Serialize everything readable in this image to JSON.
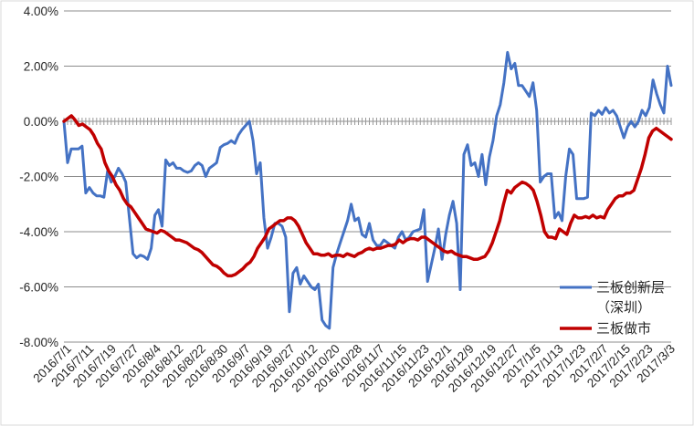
{
  "chart_data": {
    "type": "line",
    "title": "",
    "xlabel": "",
    "ylabel": "",
    "ylim": [
      -8,
      4
    ],
    "y_ticks": [
      "4.00%",
      "2.00%",
      "0.00%",
      "-2.00%",
      "-4.00%",
      "-6.00%",
      "-8.00%"
    ],
    "y_tick_values": [
      4,
      2,
      0,
      -2,
      -4,
      -6,
      -8
    ],
    "x_tick_labels": [
      "2016/7/1",
      "2016/7/11",
      "2016/7/19",
      "2016/7/27",
      "2016/8/4",
      "2016/8/12",
      "2016/8/22",
      "2016/8/30",
      "2016/9/7",
      "2016/9/19",
      "2016/9/27",
      "2016/10/12",
      "2016/10/20",
      "2016/10/28",
      "2016/11/7",
      "2016/11/15",
      "2016/11/23",
      "2016/12/1",
      "2016/12/9",
      "2016/12/19",
      "2016/12/27",
      "2017/1/5",
      "2017/1/13",
      "2017/1/23",
      "2017/2/7",
      "2017/2/15",
      "2017/2/23",
      "2017/3/3"
    ],
    "grid": true,
    "legend_position": "bottom-right",
    "series": [
      {
        "name": "三板创新层（深圳）",
        "legend_lines": [
          "三板创新层",
          "（深圳）"
        ],
        "color": "#4472c4",
        "values": [
          0.0,
          -1.5,
          -1.0,
          -1.0,
          -1.0,
          -0.9,
          -2.6,
          -2.4,
          -2.6,
          -2.7,
          -2.7,
          -2.75,
          -1.8,
          -2.2,
          -2.0,
          -1.7,
          -1.9,
          -2.2,
          -3.5,
          -4.8,
          -4.95,
          -4.85,
          -4.9,
          -5.0,
          -4.6,
          -3.4,
          -3.2,
          -3.8,
          -1.4,
          -1.6,
          -1.5,
          -1.7,
          -1.7,
          -1.8,
          -1.85,
          -1.8,
          -1.6,
          -1.5,
          -1.6,
          -2.0,
          -1.7,
          -1.6,
          -1.5,
          -0.95,
          -0.85,
          -0.8,
          -0.7,
          -0.8,
          -0.5,
          -0.3,
          -0.15,
          0.0,
          -0.7,
          -1.9,
          -1.5,
          -3.5,
          -4.6,
          -4.2,
          -3.7,
          -3.7,
          -3.8,
          -4.2,
          -6.9,
          -5.5,
          -5.3,
          -5.9,
          -5.6,
          -5.8,
          -6.0,
          -6.1,
          -5.9,
          -7.2,
          -7.4,
          -7.5,
          -5.3,
          -4.8,
          -4.4,
          -4.0,
          -3.6,
          -3.0,
          -3.6,
          -3.5,
          -4.1,
          -4.2,
          -3.7,
          -4.3,
          -4.5,
          -4.5,
          -4.3,
          -4.4,
          -4.5,
          -4.6,
          -4.2,
          -4.0,
          -4.3,
          -4.2,
          -4.0,
          -3.95,
          -3.9,
          -3.2,
          -5.8,
          -5.2,
          -4.6,
          -3.9,
          -5.0,
          -4.1,
          -3.4,
          -2.9,
          -3.7,
          -6.1,
          -1.2,
          -0.85,
          -1.6,
          -1.5,
          -2.0,
          -1.2,
          -2.3,
          -1.3,
          -0.7,
          0.2,
          0.6,
          1.4,
          2.5,
          1.9,
          2.1,
          1.3,
          1.3,
          1.1,
          0.9,
          1.4,
          0.4,
          -2.2,
          -2.0,
          -1.9,
          -1.9,
          -3.5,
          -3.3,
          -3.6,
          -2.0,
          -1.0,
          -1.2,
          -2.8,
          -2.8,
          -2.8,
          -2.75,
          0.3,
          0.2,
          0.4,
          0.25,
          0.5,
          0.3,
          0.4,
          0.2,
          -0.2,
          -0.6,
          -0.2,
          0.0,
          -0.2,
          0.0,
          0.4,
          0.2,
          0.5,
          1.5,
          1.0,
          0.6,
          0.3,
          2.0,
          1.3
        ]
      },
      {
        "name": "三板做市",
        "legend_lines": [
          "三板做市"
        ],
        "color": "#c00000",
        "values": [
          0.0,
          0.1,
          0.2,
          0.05,
          -0.15,
          -0.1,
          -0.2,
          -0.3,
          -0.5,
          -0.8,
          -1.0,
          -1.5,
          -1.8,
          -2.0,
          -2.3,
          -2.5,
          -2.8,
          -3.0,
          -3.1,
          -3.3,
          -3.5,
          -3.7,
          -3.9,
          -3.95,
          -4.0,
          -4.05,
          -3.95,
          -4.0,
          -4.1,
          -4.2,
          -4.3,
          -4.3,
          -4.35,
          -4.4,
          -4.5,
          -4.6,
          -4.65,
          -4.75,
          -4.9,
          -5.05,
          -5.2,
          -5.25,
          -5.35,
          -5.5,
          -5.6,
          -5.6,
          -5.55,
          -5.45,
          -5.35,
          -5.2,
          -5.1,
          -4.9,
          -4.6,
          -4.4,
          -4.2,
          -3.9,
          -3.8,
          -3.7,
          -3.6,
          -3.6,
          -3.5,
          -3.5,
          -3.6,
          -3.8,
          -4.1,
          -4.4,
          -4.6,
          -4.8,
          -4.8,
          -4.85,
          -4.85,
          -4.8,
          -4.9,
          -4.85,
          -4.85,
          -4.9,
          -4.8,
          -4.85,
          -4.9,
          -4.8,
          -4.75,
          -4.65,
          -4.6,
          -4.65,
          -4.6,
          -4.6,
          -4.55,
          -4.5,
          -4.5,
          -4.45,
          -4.3,
          -4.4,
          -4.3,
          -4.25,
          -4.25,
          -4.3,
          -4.2,
          -4.2,
          -4.3,
          -4.4,
          -4.5,
          -4.6,
          -4.7,
          -4.75,
          -4.7,
          -4.8,
          -4.85,
          -4.9,
          -4.9,
          -4.95,
          -5.0,
          -5.0,
          -4.95,
          -4.9,
          -4.7,
          -4.4,
          -4.0,
          -3.6,
          -3.0,
          -2.5,
          -2.6,
          -2.4,
          -2.3,
          -2.2,
          -2.25,
          -2.35,
          -2.5,
          -2.9,
          -3.4,
          -4.0,
          -4.2,
          -4.2,
          -4.25,
          -3.9,
          -4.0,
          -4.1,
          -3.7,
          -3.4,
          -3.5,
          -3.5,
          -3.45,
          -3.5,
          -3.4,
          -3.5,
          -3.45,
          -3.5,
          -3.2,
          -3.0,
          -2.8,
          -2.7,
          -2.7,
          -2.6,
          -2.6,
          -2.5,
          -2.1,
          -1.7,
          -1.2,
          -0.6,
          -0.35,
          -0.25,
          -0.35,
          -0.45,
          -0.55,
          -0.65
        ]
      }
    ]
  }
}
